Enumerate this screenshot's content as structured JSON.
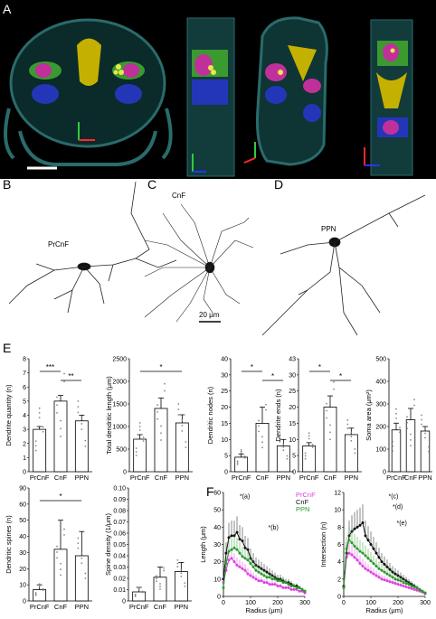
{
  "panels": {
    "a": "A",
    "b": "B",
    "c": "C",
    "d": "D",
    "e": "E",
    "f": "F"
  },
  "neurons": {
    "b": "PrCnF",
    "c": "CnF",
    "d": "PPN",
    "scale": "20 μm"
  },
  "colors": {
    "prcnf": "#e040e0",
    "cnf": "#111111",
    "ppn": "#2a9a2a",
    "brain_shell": "#2a6b6b",
    "yellow": "#d9c400",
    "magenta": "#c0309a",
    "blue": "#2436b8",
    "green": "#3a9a30"
  },
  "bar_groups": [
    "PrCnF",
    "CnF",
    "PPN"
  ],
  "chart_data": [
    {
      "type": "bar",
      "ylabel": "Dendrite quantity (n)",
      "categories": [
        "PrCnF",
        "CnF",
        "PPN"
      ],
      "values": [
        3.0,
        5.0,
        3.6
      ],
      "errors": [
        0.2,
        0.4,
        0.4
      ],
      "ylim": [
        0,
        8
      ],
      "yticks": [
        0,
        1,
        2,
        3,
        4,
        5,
        6,
        7,
        8
      ],
      "sig": [
        "***",
        "**"
      ]
    },
    {
      "type": "bar",
      "ylabel": "Total dendritic length (μm)",
      "categories": [
        "PrCnF",
        "CnF",
        "PPN"
      ],
      "values": [
        720,
        1400,
        1080
      ],
      "errors": [
        100,
        230,
        180
      ],
      "ylim": [
        0,
        2500
      ],
      "yticks": [
        0,
        500,
        1000,
        1500,
        2000,
        2500
      ],
      "sig": [
        "*"
      ]
    },
    {
      "type": "bar",
      "ylabel": "Dendritic nodes (n)",
      "categories": [
        "PrCnF",
        "CnF",
        "PPN"
      ],
      "values": [
        4.5,
        15,
        8
      ],
      "errors": [
        1,
        5,
        2
      ],
      "ylim": [
        0,
        40
      ],
      "yticks": [
        0,
        5,
        10,
        15,
        20,
        25,
        30,
        40
      ],
      "sig": [
        "*",
        "*"
      ]
    },
    {
      "type": "bar",
      "ylabel": "Dendrite ends (n)",
      "categories": [
        "PrCnF",
        "CnF",
        "PPN"
      ],
      "values": [
        8,
        20,
        11.5
      ],
      "errors": [
        1,
        3.5,
        2
      ],
      "ylim": [
        0,
        43
      ],
      "yticks": [
        0,
        5,
        10,
        15,
        20,
        25,
        30,
        43
      ],
      "sig": [
        "*",
        "*"
      ]
    },
    {
      "type": "bar",
      "ylabel": "Soma area (μm²)",
      "categories": [
        "PrCnF",
        "CnF",
        "PPN"
      ],
      "values": [
        185,
        230,
        180
      ],
      "errors": [
        30,
        50,
        20
      ],
      "ylim": [
        0,
        500
      ],
      "yticks": [
        0,
        100,
        200,
        300,
        400,
        500
      ],
      "sig": []
    },
    {
      "type": "bar",
      "ylabel": "Dendritic spines (n)",
      "categories": [
        "PrCnF",
        "CnF",
        "PPN"
      ],
      "values": [
        7,
        32,
        28
      ],
      "errors": [
        3,
        18,
        15
      ],
      "ylim": [
        0,
        90
      ],
      "yticks": [
        0,
        10,
        20,
        30,
        40,
        50,
        60,
        90
      ],
      "sig": [
        "*"
      ]
    },
    {
      "type": "bar",
      "ylabel": "Spine density (1/μm)",
      "categories": [
        "PrCnF",
        "CnF",
        "PPN"
      ],
      "values": [
        0.008,
        0.021,
        0.026
      ],
      "errors": [
        0.004,
        0.009,
        0.008
      ],
      "ylim": [
        0,
        0.1
      ],
      "yticks": [
        0,
        0.01,
        0.02,
        0.03,
        0.04,
        0.05,
        0.06,
        0.07,
        0.08,
        0.09,
        0.1
      ],
      "sig": []
    },
    {
      "type": "line",
      "ylabel": "Length (μm)",
      "xlabel": "Radius (μm)",
      "x": [
        0,
        10,
        20,
        30,
        40,
        50,
        60,
        70,
        80,
        90,
        100,
        110,
        120,
        130,
        140,
        150,
        160,
        170,
        180,
        190,
        200,
        210,
        220,
        230,
        240,
        250,
        260,
        270,
        280,
        290,
        300
      ],
      "xlim": [
        0,
        300
      ],
      "ylim": [
        0,
        60
      ],
      "xticks": [
        0,
        100,
        200,
        300
      ],
      "yticks": [
        0,
        10,
        20,
        30,
        40,
        50,
        60
      ],
      "series": [
        {
          "name": "PrCnF",
          "values": [
            8,
            15,
            21,
            22,
            20,
            18,
            17,
            16,
            15,
            13,
            12,
            11,
            10,
            9,
            9,
            8,
            8,
            7,
            7,
            7,
            6,
            6,
            5,
            5,
            5,
            4,
            4,
            4,
            3,
            3,
            2
          ]
        },
        {
          "name": "CnF",
          "values": [
            10,
            25,
            34,
            35,
            35,
            37,
            33,
            32,
            28,
            27,
            22,
            20,
            18,
            17,
            16,
            15,
            14,
            13,
            12,
            11,
            10,
            10,
            9,
            8,
            8,
            7,
            6,
            6,
            5,
            4,
            3
          ]
        },
        {
          "name": "PPN",
          "values": [
            5,
            19,
            26,
            27,
            28,
            27,
            25,
            23,
            22,
            21,
            19,
            17,
            15,
            14,
            13,
            12,
            11,
            11,
            10,
            10,
            9,
            9,
            8,
            8,
            7,
            6,
            6,
            5,
            5,
            4,
            3
          ]
        }
      ],
      "annotations": [
        "*(a)",
        "*(b)"
      ]
    },
    {
      "type": "line",
      "ylabel": "Intersection (n)",
      "xlabel": "Radius (μm)",
      "x": [
        0,
        10,
        20,
        30,
        40,
        50,
        60,
        70,
        80,
        90,
        100,
        110,
        120,
        130,
        140,
        150,
        160,
        170,
        180,
        190,
        200,
        210,
        220,
        230,
        240,
        250,
        260,
        270,
        280,
        290,
        300
      ],
      "xlim": [
        0,
        300
      ],
      "ylim": [
        0,
        12
      ],
      "xticks": [
        0,
        100,
        200,
        300
      ],
      "yticks": [
        0,
        2,
        4,
        6,
        8,
        10,
        12
      ],
      "series": [
        {
          "name": "PrCnF",
          "values": [
            1,
            4.5,
            5,
            4.8,
            4.5,
            4.2,
            3.8,
            3.5,
            3.2,
            3,
            2.8,
            2.6,
            2.4,
            2.2,
            2,
            1.9,
            1.8,
            1.7,
            1.6,
            1.5,
            1.4,
            1.3,
            1.2,
            1.1,
            1,
            0.9,
            0.8,
            0.7,
            0.6,
            0.5,
            0.3
          ]
        },
        {
          "name": "CnF",
          "values": [
            1.2,
            5,
            7,
            7.5,
            7.8,
            8,
            8.2,
            8.5,
            7,
            6.5,
            6,
            5.5,
            5,
            4.5,
            4,
            3.7,
            3.4,
            3.1,
            2.8,
            2.6,
            2.4,
            2.2,
            2,
            1.8,
            1.6,
            1.4,
            1.2,
            1,
            0.8,
            0.6,
            0.4
          ]
        },
        {
          "name": "PPN",
          "values": [
            1,
            5.5,
            6.5,
            6.2,
            5.8,
            5.5,
            5.2,
            5,
            4.7,
            4.4,
            4.1,
            3.8,
            3.5,
            3.2,
            3,
            2.8,
            2.6,
            2.4,
            2.2,
            2,
            1.9,
            1.8,
            1.6,
            1.5,
            1.4,
            1.2,
            1.1,
            1,
            0.8,
            0.6,
            0.4
          ]
        }
      ],
      "annotations": [
        "*(c)",
        "*(d)",
        "*(e)"
      ]
    }
  ]
}
